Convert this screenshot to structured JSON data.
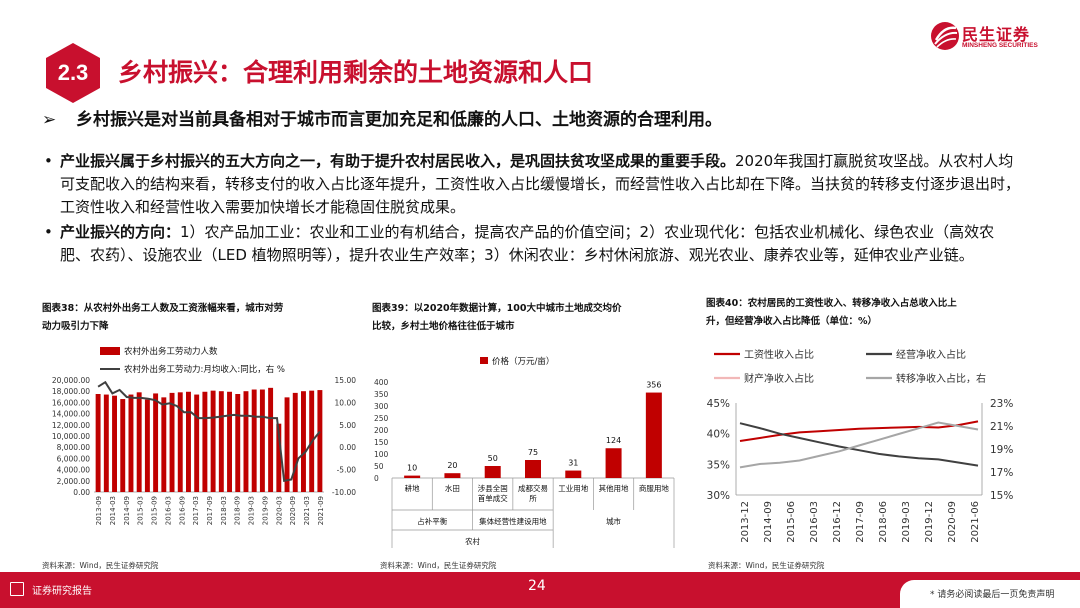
{
  "logo": {
    "name_cn": "民生证券",
    "name_en": "MINSHENG SECURITIES"
  },
  "section": {
    "number": "2.3",
    "title": "乡村振兴：合理利用剩余的土地资源和人口"
  },
  "subheading": {
    "marker": "➢",
    "text": "乡村振兴是对当前具备相对于城市而言更加充足和低廉的人口、土地资源的合理利用。"
  },
  "bullets": [
    {
      "marker": "•",
      "bold": "产业振兴属于乡村振兴的五大方向之一，有助于提升农村居民收入，是巩固扶贫攻坚成果的重要手段。",
      "text": "2020年我国打赢脱贫攻坚战。从农村人均可支配收入的结构来看，转移支付的收入占比逐年提升，工资性收入占比缓慢增长，而经营性收入占比却在下降。当扶贫的转移支付逐步退出时，工资性收入和经营性收入需要加快增长才能稳固住脱贫成果。"
    },
    {
      "marker": "•",
      "bold": "产业振兴的方向：",
      "text": "1）农产品加工业：农业和工业的有机结合，提高农产品的价值空间；2）农业现代化：包括农业机械化、绿色农业（高效农肥、农药）、设施农业（LED 植物照明等），提升农业生产效率；3）休闲农业：乡村休闲旅游、观光农业、康养农业等，延伸农业产业链。"
    }
  ],
  "figures": [
    {
      "title_line1": "图表38：从农村外出务工人数及工资涨幅来看，城市对劳",
      "title_line2": "动力吸引力下降",
      "source": "资料来源：Wind，民生证券研究院"
    },
    {
      "title_line1": "图表39：以2020年数据计算，100大中城市土地成交均价",
      "title_line2": "比较，乡村土地价格往往低于城市",
      "source": "资料来源：Wind，民生证券研究院"
    },
    {
      "title_line1": "图表40：农村居民的工资性收入、转移净收入占总收入比上",
      "title_line2": "升，但经营净收入占比降低（单位：%）",
      "source": "资料来源：Wind，民生证券研究院"
    }
  ],
  "footer": {
    "report_type": "证券研究报告",
    "page": "24",
    "disclaimer": "* 请务必阅读最后一页免责声明"
  },
  "chart_data": [
    {
      "type": "bar",
      "series": [
        {
          "name": "农村外出务工劳动力人数",
          "color": "#c00000",
          "axis": "left",
          "values": [
            17500,
            17400,
            17200,
            16600,
            17400,
            17800,
            16500,
            17600,
            16900,
            17700,
            17800,
            17900,
            17400,
            17900,
            18100,
            18000,
            17900,
            17500,
            18000,
            18300,
            18300,
            18600,
            12200,
            16900,
            17700,
            18000,
            18100,
            18200
          ]
        },
        {
          "name": "农村外出务工劳动力:月均收入:同比，右 %",
          "color": "#404040",
          "axis": "right",
          "values": [
            13.5,
            14.5,
            12.0,
            12.8,
            11.2,
            11.0,
            11.0,
            10.8,
            10.5,
            9.5,
            9.8,
            9.2,
            7.8,
            7.8,
            6.5,
            6.5,
            6.6,
            6.8,
            7.0,
            7.2,
            7.0,
            7.0,
            6.8,
            6.8,
            6.5,
            6.5,
            -7.5,
            -7.2,
            -2.5,
            -1.0,
            1.5,
            3.5
          ]
        }
      ],
      "x_ticks": [
        "2013-09",
        "2014-03",
        "2014-09",
        "2015-03",
        "2015-09",
        "2016-03",
        "2016-09",
        "2017-03",
        "2017-09",
        "2018-03",
        "2018-09",
        "2019-03",
        "2019-09",
        "2020-03",
        "2020-09",
        "2021-03",
        "2021-09"
      ],
      "y_left": {
        "ticks": [
          "0.00",
          "2,000.00",
          "4,000.00",
          "6,000.00",
          "8,000.00",
          "10,000.00",
          "12,000.00",
          "14,000.00",
          "16,000.00",
          "18,000.00",
          "20,000.00"
        ],
        "range": [
          0,
          20000
        ]
      },
      "y_right": {
        "ticks": [
          "-10.00",
          "-5.00",
          "0.00",
          "5.00",
          "10.00",
          "15.00"
        ],
        "range": [
          -10,
          15
        ]
      }
    },
    {
      "type": "bar",
      "legend": "价格（万元/亩）",
      "color": "#c00000",
      "categories": [
        {
          "label_lines": [
            "耕地"
          ],
          "value": 10
        },
        {
          "label_lines": [
            "水田"
          ],
          "value": 20
        },
        {
          "label_lines": [
            "涉县全国",
            "首单成交"
          ],
          "value": 50
        },
        {
          "label_lines": [
            "成都交易",
            "所"
          ],
          "value": 75
        },
        {
          "label_lines": [
            "工业用地"
          ],
          "value": 31
        },
        {
          "label_lines": [
            "其他用地"
          ],
          "value": 124
        },
        {
          "label_lines": [
            "商服用地"
          ],
          "value": 356
        }
      ],
      "group_level1": [
        {
          "label": "占补平衡",
          "span": [
            0,
            1
          ]
        },
        {
          "label": "集体经营性建设用地",
          "span": [
            2,
            3
          ]
        }
      ],
      "group_level2": [
        {
          "label": "农村",
          "span": [
            0,
            3
          ]
        },
        {
          "label": "城市",
          "span": [
            4,
            6
          ]
        }
      ],
      "y_ticks": [
        "0",
        "50",
        "100",
        "150",
        "200",
        "250",
        "300",
        "350",
        "400"
      ],
      "ylim": [
        0,
        400
      ]
    },
    {
      "type": "line",
      "legend": [
        {
          "name": "工资性收入占比",
          "color": "#c00000"
        },
        {
          "name": "经营净收入占比",
          "color": "#404040"
        },
        {
          "name": "财产净收入占比",
          "color": "#f2b8b8"
        },
        {
          "name": "转移净收入占比，右",
          "color": "#a6a6a6"
        }
      ],
      "x_ticks": [
        "2013-12",
        "2014-09",
        "2015-06",
        "2016-03",
        "2016-12",
        "2017-09",
        "2018-06",
        "2019-03",
        "2019-12",
        "2020-09",
        "2021-06"
      ],
      "y_left": {
        "ticks": [
          "30%",
          "35%",
          "40%",
          "45%"
        ],
        "range": [
          30,
          45
        ]
      },
      "y_right": {
        "ticks": [
          "15%",
          "17%",
          "19%",
          "21%",
          "23%"
        ],
        "range": [
          15,
          23
        ]
      },
      "series": [
        {
          "name": "工资性收入占比",
          "axis": "left",
          "color": "#c00000",
          "values": [
            38.8,
            39.3,
            39.8,
            40.2,
            40.4,
            40.6,
            40.8,
            40.9,
            41.0,
            41.1,
            41.0,
            41.4,
            42.0
          ]
        },
        {
          "name": "经营净收入占比",
          "axis": "left",
          "color": "#404040",
          "values": [
            41.7,
            40.9,
            40.0,
            39.3,
            38.6,
            37.9,
            37.3,
            36.7,
            36.3,
            36.0,
            35.8,
            35.3,
            34.8
          ]
        },
        {
          "name": "转移净收入占比，右",
          "axis": "right",
          "color": "#a6a6a6",
          "values": [
            17.4,
            17.7,
            17.8,
            18.0,
            18.4,
            18.8,
            19.3,
            19.8,
            20.3,
            20.8,
            21.3,
            21.0,
            20.7
          ]
        }
      ]
    }
  ]
}
